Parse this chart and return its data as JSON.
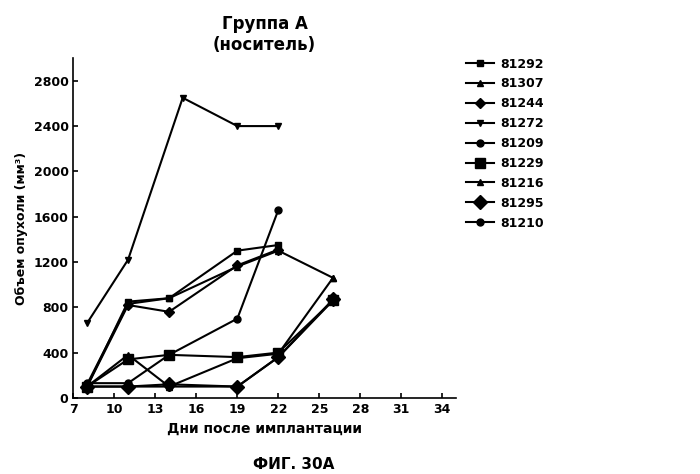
{
  "title_line1": "Группа А",
  "title_line2": "(носитель)",
  "xlabel": "Дни после имплантации",
  "ylabel": "Объем опухоли (мм³)",
  "caption": "ФИГ. 30А",
  "xlim": [
    7,
    35
  ],
  "ylim": [
    0,
    3000
  ],
  "xticks": [
    7,
    10,
    13,
    16,
    19,
    22,
    25,
    28,
    31,
    34
  ],
  "yticks": [
    0,
    400,
    800,
    1200,
    1600,
    2000,
    2400,
    2800
  ],
  "series": [
    {
      "label": "81292",
      "marker": "s",
      "x": [
        8,
        11,
        14,
        19,
        22
      ],
      "y": [
        100,
        850,
        880,
        1300,
        1350
      ]
    },
    {
      "label": "81307",
      "marker": "^",
      "x": [
        8,
        11,
        14,
        19,
        22,
        26
      ],
      "y": [
        120,
        830,
        880,
        1160,
        1300,
        1060
      ]
    },
    {
      "label": "81244",
      "marker": "D",
      "x": [
        8,
        11,
        14,
        19,
        22
      ],
      "y": [
        100,
        820,
        760,
        1170,
        1310
      ]
    },
    {
      "label": "81272",
      "marker": "v",
      "x": [
        8,
        11,
        15,
        19,
        22
      ],
      "y": [
        660,
        1220,
        2650,
        2400,
        2400
      ]
    },
    {
      "label": "81209",
      "marker": "o",
      "x": [
        8,
        11,
        14,
        19,
        22
      ],
      "y": [
        130,
        130,
        380,
        700,
        1660
      ]
    },
    {
      "label": "81229",
      "marker": "s",
      "x": [
        8,
        11,
        14,
        19,
        22,
        26
      ],
      "y": [
        100,
        340,
        380,
        360,
        400,
        860
      ]
    },
    {
      "label": "81216",
      "marker": "^",
      "x": [
        8,
        11,
        14,
        19,
        22,
        26
      ],
      "y": [
        100,
        380,
        100,
        350,
        390,
        1060
      ]
    },
    {
      "label": "81295",
      "marker": "D",
      "x": [
        8,
        11,
        14,
        19,
        22,
        26
      ],
      "y": [
        100,
        100,
        120,
        100,
        360,
        870
      ]
    },
    {
      "label": "81210",
      "marker": "o",
      "x": [
        8,
        11,
        14,
        19,
        22,
        26
      ],
      "y": [
        100,
        100,
        100,
        100,
        360,
        860
      ]
    }
  ]
}
